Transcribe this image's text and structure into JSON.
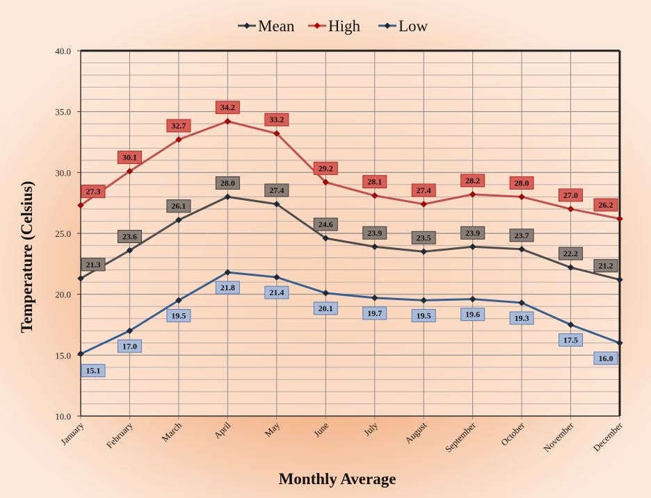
{
  "chart_data": {
    "type": "line",
    "xlabel": "Monthly Average",
    "ylabel": "Temperature (Celsius)",
    "ylim": [
      10,
      40
    ],
    "ytick_step": 5,
    "minor_grid_step": 1,
    "grid": true,
    "legend_position": "top",
    "categories": [
      "January",
      "February",
      "March",
      "April",
      "May",
      "June",
      "July",
      "August",
      "September",
      "October",
      "November",
      "December"
    ],
    "series": [
      {
        "name": "Mean",
        "color": "#4d4d4d",
        "label_color": "#8c8179",
        "values": [
          21.3,
          23.6,
          26.1,
          28.0,
          27.4,
          24.6,
          23.9,
          23.5,
          23.9,
          23.7,
          22.2,
          21.2
        ]
      },
      {
        "name": "High",
        "color": "#c0504d",
        "label_color": "#d9605a",
        "values": [
          27.3,
          30.1,
          32.7,
          34.2,
          33.2,
          29.2,
          28.1,
          27.4,
          28.2,
          28.0,
          27.0,
          26.2
        ]
      },
      {
        "name": "Low",
        "color": "#365f91",
        "label_color": "#a7b9d6",
        "values": [
          15.1,
          17.0,
          19.5,
          21.8,
          21.4,
          20.1,
          19.7,
          19.5,
          19.6,
          19.3,
          17.5,
          16.0
        ]
      }
    ]
  }
}
